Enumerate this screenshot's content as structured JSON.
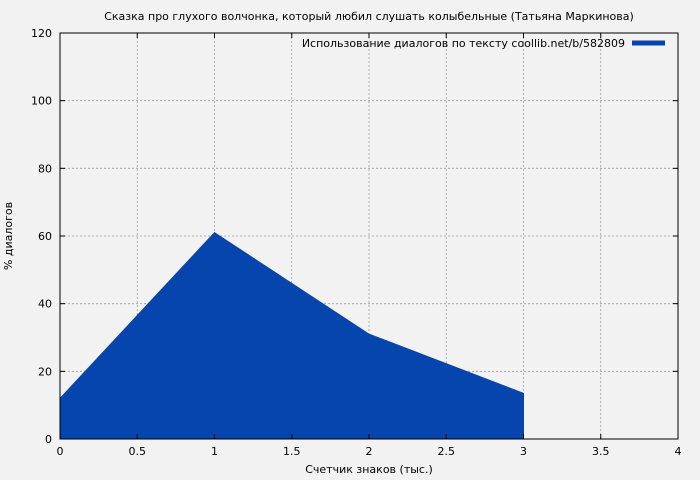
{
  "chart_data": {
    "type": "area",
    "title": "Сказка про глухого волчонка, который любил слушать колыбельные (Татьяна Маркинова)",
    "xlabel": "Счетчик знаков (тыс.)",
    "ylabel": "% диалогов",
    "xlim": [
      0,
      4
    ],
    "ylim": [
      0,
      120
    ],
    "x_ticks": [
      "0",
      "0.5",
      "1",
      "1.5",
      "2",
      "2.5",
      "3",
      "3.5",
      "4"
    ],
    "y_ticks": [
      "0",
      "20",
      "40",
      "60",
      "80",
      "100",
      "120"
    ],
    "grid": true,
    "legend_position": "top-right",
    "series": [
      {
        "name": "Использование диалогов по тексту coollib.net/b/582809",
        "color": "#0645ad",
        "x": [
          0,
          1,
          2,
          3
        ],
        "y": [
          12,
          61,
          31,
          13.5
        ]
      }
    ]
  }
}
